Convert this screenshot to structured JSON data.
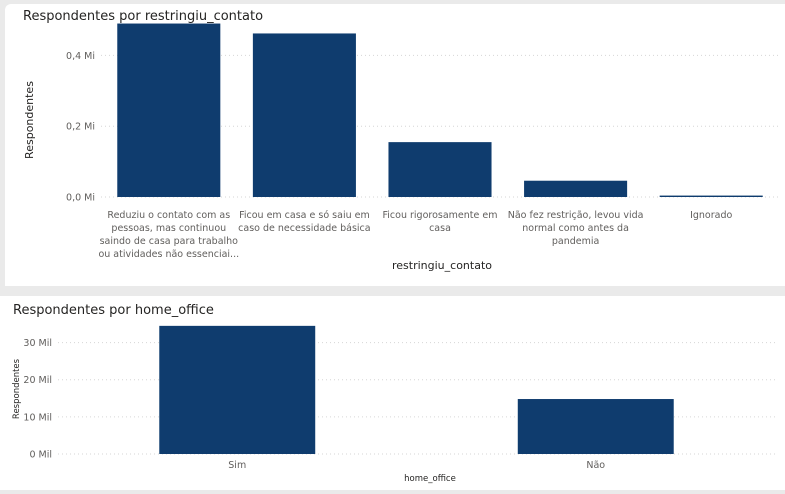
{
  "chart_data": [
    {
      "type": "bar",
      "title": "Respondentes por restringiu_contato",
      "xlabel": "restringiu_contato",
      "ylabel": "Respondentes",
      "categories": [
        "Reduziu o contato com as pessoas, mas continuou saindo de casa para trabalho ou atividades não essenciai...",
        "Ficou em casa e só saiu em caso de necessidade básica",
        "Ficou rigorosamente em casa",
        "Não fez restrição, levou vida normal como antes da pandemia",
        "Ignorado"
      ],
      "category_lines": [
        [
          "Reduziu o contato com as",
          "pessoas, mas continuou",
          "saindo de casa para trabalho",
          "ou atividades não essenciai..."
        ],
        [
          "Ficou em casa e só saiu em",
          "caso de necessidade básica"
        ],
        [
          "Ficou rigorosamente em",
          "casa"
        ],
        [
          "Não fez restrição, levou vida",
          "normal como antes da",
          "pandemia"
        ],
        [
          "Ignorado"
        ]
      ],
      "values": [
        490000,
        462000,
        155000,
        46000,
        4000
      ],
      "yticks": [
        0,
        200000,
        400000
      ],
      "ytick_labels": [
        "0,0 Mi",
        "0,2 Mi",
        "0,4 Mi"
      ],
      "ylim": [
        0,
        500000
      ],
      "bar_color": "#0f3c6e",
      "grid": true,
      "legend": "none"
    },
    {
      "type": "bar",
      "title": "Respondentes por home_office",
      "xlabel": "home_office",
      "ylabel": "Respondentes",
      "categories": [
        "Sim",
        "Não"
      ],
      "values": [
        34500,
        14800
      ],
      "yticks": [
        0,
        10000,
        20000,
        30000
      ],
      "ytick_labels": [
        "0 Mil",
        "10 Mil",
        "20 Mil",
        "30 Mil"
      ],
      "ylim": [
        0,
        35000
      ],
      "bar_color": "#0f3c6e",
      "grid": true,
      "legend": "none"
    }
  ]
}
